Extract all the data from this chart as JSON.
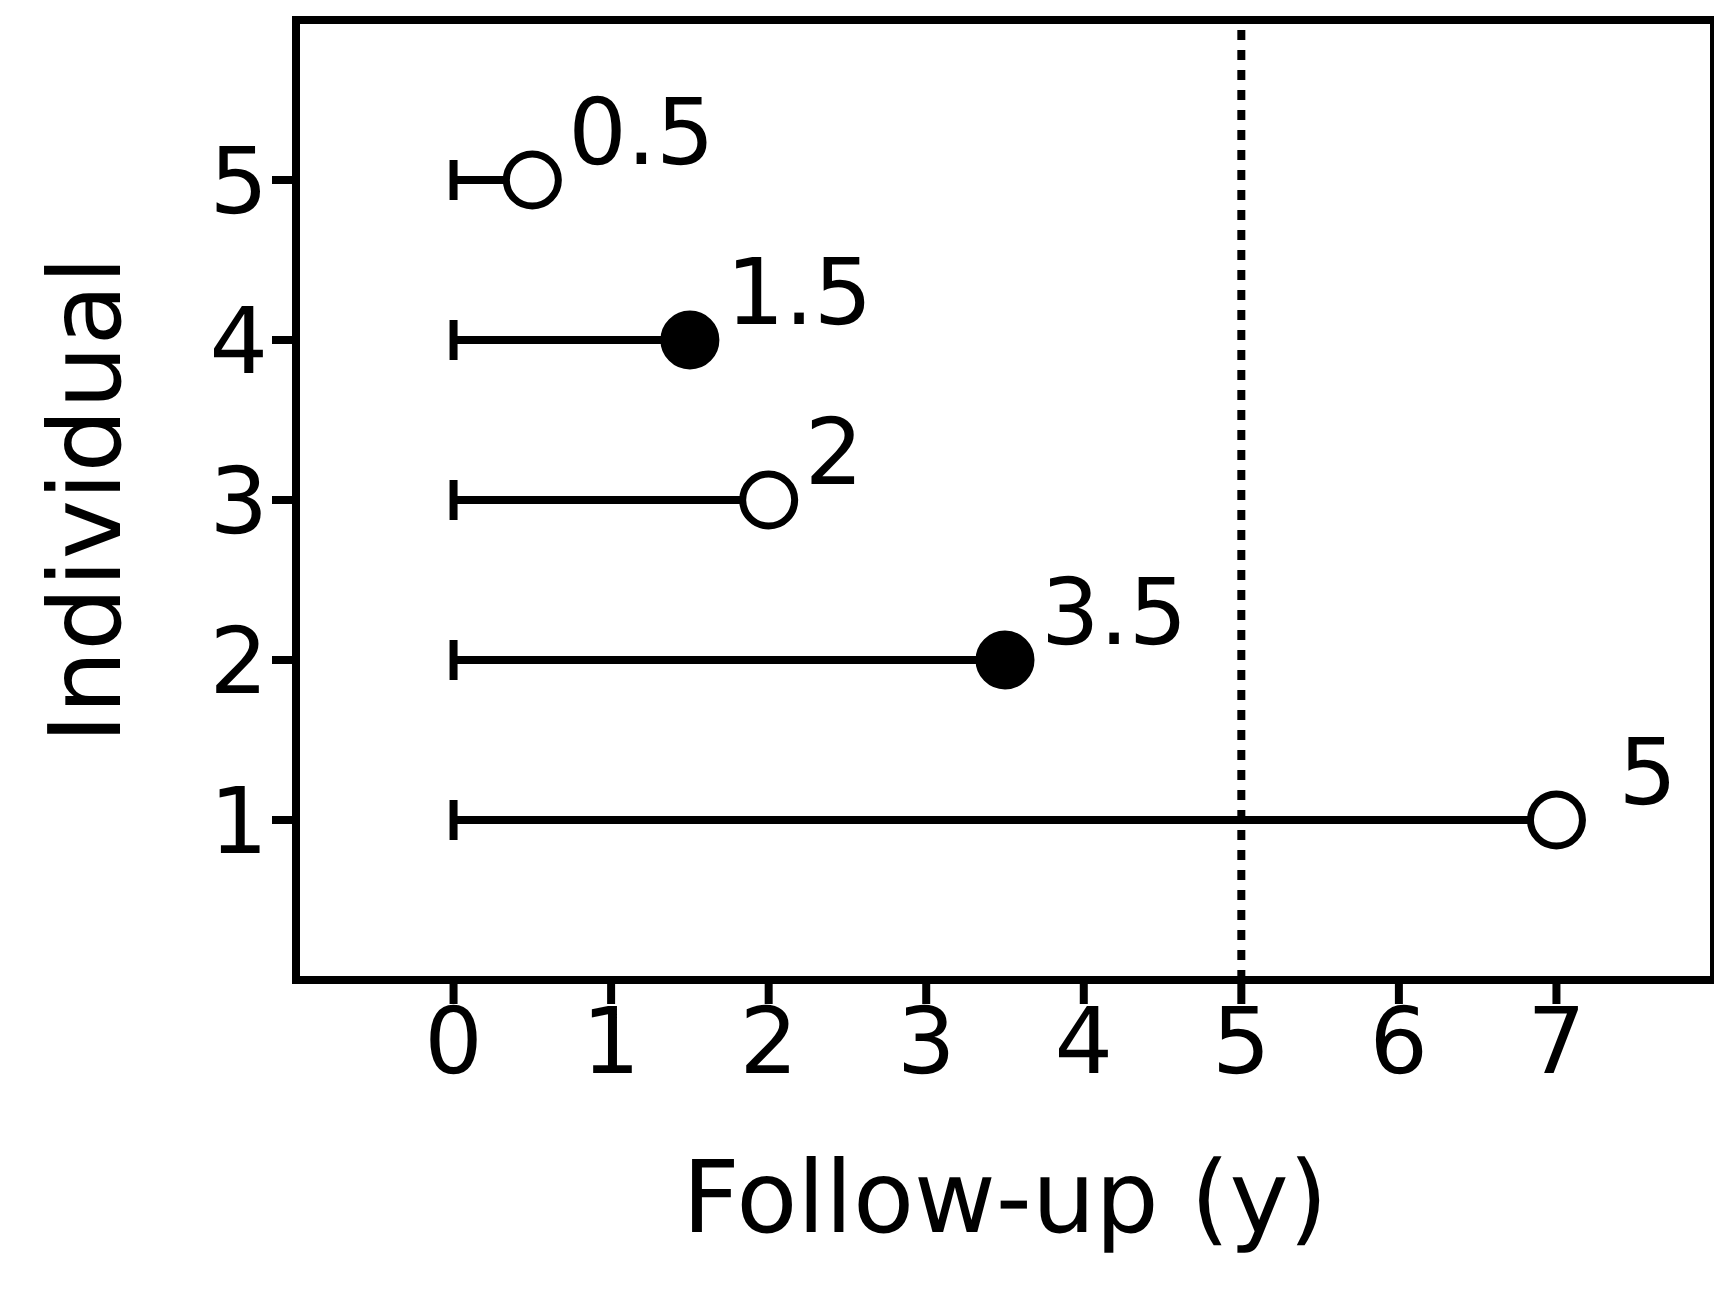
{
  "chart_data": {
    "type": "lollipop",
    "orientation": "horizontal",
    "xlabel": "Follow-up (y)",
    "ylabel": "Individual",
    "categories": [
      "5",
      "4",
      "3",
      "2",
      "1"
    ],
    "values": [
      0.5,
      1.5,
      2,
      3.5,
      7
    ],
    "color": "#000000",
    "colors": [
      "#ffffff",
      "#000000",
      "#ffffff",
      "#000000",
      "#ffffff"
    ],
    "value_labels": [
      "0.5",
      "1.5",
      "2",
      "3.5",
      null
    ],
    "annotations": [
      {
        "text": "5",
        "x": 7,
        "y": "1"
      }
    ],
    "marker": "circle",
    "xlim": [
      -1,
      8
    ],
    "xticks": [
      0,
      1,
      2,
      3,
      4,
      5,
      6,
      7
    ],
    "ref_lines": [
      {
        "axis": "x",
        "value": 5,
        "color": "#000000",
        "line_style": "dotted"
      }
    ],
    "grid": false,
    "legend": false
  }
}
